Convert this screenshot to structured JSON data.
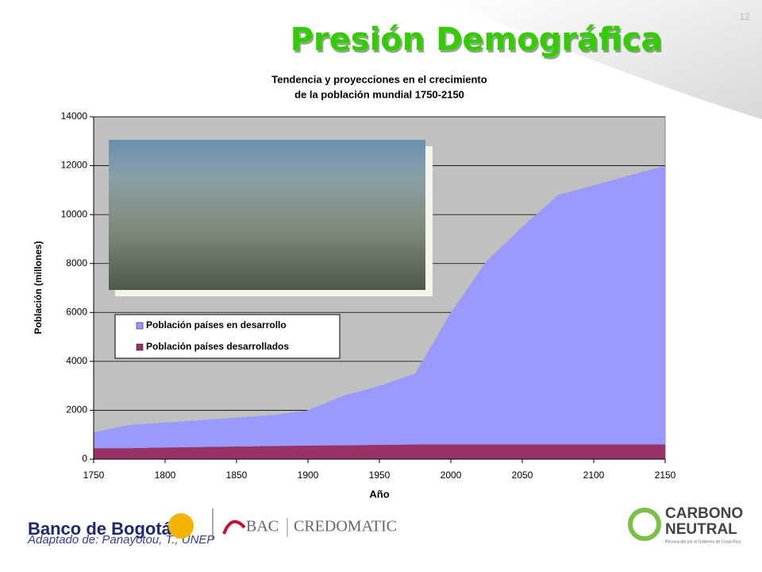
{
  "slide": {
    "page_number": "12",
    "heading": "Presión Demográfica",
    "source": "Adaptado de: Panayotou, T.; UNEP",
    "logos": {
      "bank": "Banco de Bogotá",
      "bac": "BAC",
      "credomatic": "CREDOMATIC",
      "carbono": "CARBONO",
      "neutral": "NEUTRAL",
      "recognized": "Reconocido por el Gobierno de Costa Rica"
    }
  },
  "chart_data": {
    "type": "area",
    "stacked": true,
    "title": [
      "Tendencia y proyecciones en el crecimiento",
      "de la población mundial 1750-2150"
    ],
    "xlabel": "Año",
    "ylabel": "Población (millones)",
    "x": [
      1750,
      1775,
      1800,
      1825,
      1850,
      1875,
      1900,
      1925,
      1950,
      1975,
      2000,
      2025,
      2050,
      2075,
      2100,
      2125,
      2150
    ],
    "series": [
      {
        "name": "Población países desarrollados",
        "color": "#993366",
        "values": [
          450,
          450,
          480,
          500,
          520,
          540,
          560,
          570,
          590,
          600,
          600,
          600,
          600,
          600,
          600,
          600,
          600
        ]
      },
      {
        "name": "Población países en desarrollo",
        "color": "#9999ff",
        "values": [
          650,
          950,
          1020,
          1100,
          1180,
          1260,
          1440,
          2030,
          2410,
          2900,
          5400,
          7500,
          8900,
          10200,
          10600,
          11000,
          11400
        ]
      }
    ],
    "xlim": [
      1750,
      2150
    ],
    "xticks": [
      1750,
      1800,
      1850,
      1900,
      1950,
      2000,
      2050,
      2100,
      2150
    ],
    "ylim": [
      0,
      14000
    ],
    "yticks": [
      0,
      2000,
      4000,
      6000,
      8000,
      10000,
      12000,
      14000
    ],
    "grid": true
  }
}
